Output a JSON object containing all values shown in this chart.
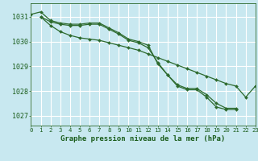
{
  "title": "Graphe pression niveau de la mer (hPa)",
  "x": [
    0,
    1,
    2,
    3,
    4,
    5,
    6,
    7,
    8,
    9,
    10,
    11,
    12,
    13,
    14,
    15,
    16,
    17,
    18,
    19,
    20,
    21,
    22,
    23
  ],
  "y1": [
    1031.1,
    1031.2,
    1030.85,
    1030.75,
    1030.7,
    1030.7,
    1030.75,
    1030.75,
    1030.55,
    1030.35,
    1030.1,
    1030.0,
    1029.85,
    1029.1,
    1028.65,
    1028.2,
    1028.05,
    1028.05,
    1027.75,
    1027.35,
    1027.25,
    1027.25,
    null,
    null
  ],
  "y2": [
    null,
    1031.0,
    1030.8,
    1030.7,
    1030.65,
    1030.65,
    1030.7,
    1030.7,
    1030.5,
    1030.3,
    1030.05,
    1029.95,
    1029.75,
    1029.15,
    1028.65,
    1028.25,
    1028.1,
    1028.1,
    1027.85,
    1027.5,
    1027.3,
    1027.3,
    null,
    null
  ],
  "y3": [
    null,
    1031.0,
    1030.65,
    1030.4,
    1030.25,
    1030.15,
    1030.1,
    1030.05,
    1029.95,
    1029.85,
    1029.75,
    1029.65,
    1029.5,
    1029.35,
    1029.2,
    1029.05,
    1028.9,
    1028.75,
    1028.6,
    1028.45,
    1028.3,
    1028.2,
    1027.75,
    1028.2
  ],
  "line_color": "#2d6a2d",
  "bg_color": "#c8e8f0",
  "grid_color": "#ffffff",
  "label_color": "#1a5c1a",
  "yticks": [
    1027,
    1028,
    1029,
    1030,
    1031
  ],
  "ylim": [
    1026.6,
    1031.55
  ],
  "xlim": [
    0,
    23
  ],
  "marker": "D",
  "markersize": 2.0,
  "linewidth": 0.9
}
